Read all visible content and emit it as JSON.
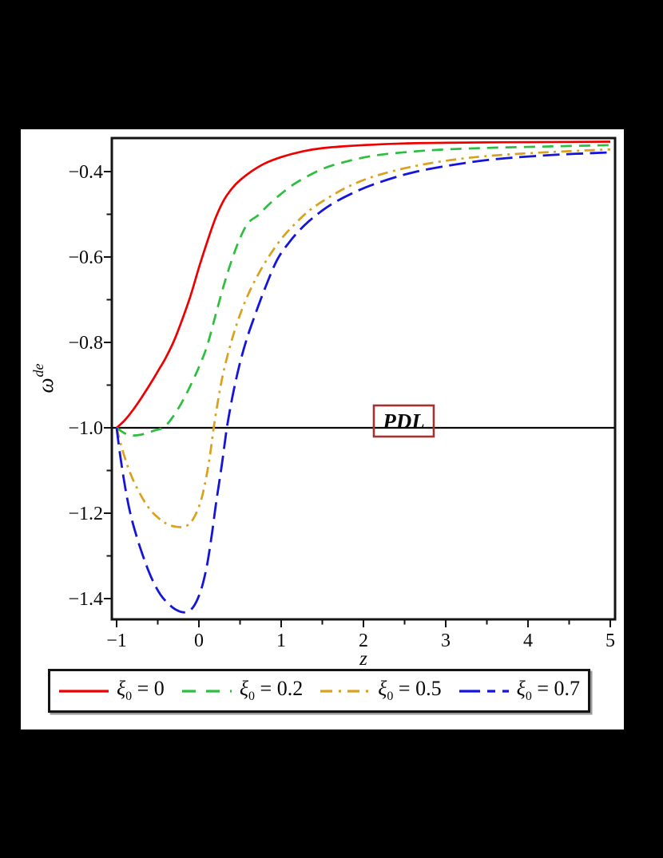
{
  "figure": {
    "page_background": "#000000",
    "canvas_background": "#ffffff",
    "frame_color": "#141414"
  },
  "chart_data": {
    "type": "line",
    "title": "",
    "xlabel": "z",
    "ylabel": {
      "symbol": "ω",
      "superscript": "de"
    },
    "xlim": [
      -1.06,
      5.06
    ],
    "ylim": [
      -1.45,
      -0.32
    ],
    "grid": false,
    "legend_position": "bottom",
    "x_major_ticks": [
      -1,
      0,
      1,
      2,
      3,
      4,
      5
    ],
    "x_tick_labels": [
      "−1",
      "0",
      "1",
      "2",
      "3",
      "4",
      "5"
    ],
    "x_minor_ticks": [
      -0.5,
      0.5,
      1.5,
      2.5,
      3.5,
      4.5
    ],
    "y_major_ticks": [
      -0.4,
      -0.6,
      -0.8,
      -1.0,
      -1.2,
      -1.4
    ],
    "y_tick_labels": [
      "−0.4",
      "−0.6",
      "−0.8",
      "−1.0",
      "−1.2",
      "−1.4"
    ],
    "y_minor_ticks": [
      -0.5,
      -0.7,
      -0.9,
      -1.1,
      -1.3
    ],
    "annotation": {
      "text": "PDL",
      "line_y": -1.0,
      "box_color": "#a33232",
      "text_color": "#0a0a0a"
    },
    "series": [
      {
        "name": "ξ0 = 0",
        "legend": {
          "symbol": "ξ",
          "sub": "0",
          "value": "0"
        },
        "color": "#ee0000",
        "dash": "solid",
        "legend_dash": "solid",
        "width": 2.7,
        "points": [
          [
            -1,
            -1
          ],
          [
            -0.9,
            -0.982
          ],
          [
            -0.8,
            -0.958
          ],
          [
            -0.7,
            -0.93
          ],
          [
            -0.6,
            -0.9
          ],
          [
            -0.5,
            -0.868
          ],
          [
            -0.4,
            -0.835
          ],
          [
            -0.3,
            -0.795
          ],
          [
            -0.2,
            -0.745
          ],
          [
            -0.1,
            -0.69
          ],
          [
            0,
            -0.625
          ],
          [
            0.1,
            -0.565
          ],
          [
            0.2,
            -0.51
          ],
          [
            0.3,
            -0.468
          ],
          [
            0.4,
            -0.44
          ],
          [
            0.5,
            -0.42
          ],
          [
            0.65,
            -0.398
          ],
          [
            0.8,
            -0.381
          ],
          [
            1,
            -0.366
          ],
          [
            1.25,
            -0.353
          ],
          [
            1.5,
            -0.345
          ],
          [
            1.75,
            -0.341
          ],
          [
            2,
            -0.338
          ],
          [
            2.5,
            -0.334
          ],
          [
            3,
            -0.3325
          ],
          [
            3.5,
            -0.3315
          ],
          [
            4,
            -0.331
          ],
          [
            4.5,
            -0.3305
          ],
          [
            5,
            -0.33
          ]
        ]
      },
      {
        "name": "ξ0 = 0.2",
        "legend": {
          "symbol": "ξ",
          "sub": "0",
          "value": "0.2"
        },
        "color": "#2cbe3e",
        "dash": "14 9",
        "legend_dash": "17 13",
        "width": 2.7,
        "points": [
          [
            -1,
            -1
          ],
          [
            -0.9,
            -1.013
          ],
          [
            -0.8,
            -1.018
          ],
          [
            -0.68,
            -1.015
          ],
          [
            -0.55,
            -1.007
          ],
          [
            -0.43,
            -0.999
          ],
          [
            -0.33,
            -0.978
          ],
          [
            -0.2,
            -0.938
          ],
          [
            -0.1,
            -0.9
          ],
          [
            0,
            -0.858
          ],
          [
            0.1,
            -0.808
          ],
          [
            0.2,
            -0.738
          ],
          [
            0.3,
            -0.668
          ],
          [
            0.4,
            -0.607
          ],
          [
            0.5,
            -0.556
          ],
          [
            0.6,
            -0.52
          ],
          [
            0.72,
            -0.502
          ],
          [
            0.85,
            -0.477
          ],
          [
            1,
            -0.452
          ],
          [
            1.2,
            -0.424
          ],
          [
            1.5,
            -0.394
          ],
          [
            1.8,
            -0.376
          ],
          [
            2.15,
            -0.362
          ],
          [
            2.6,
            -0.353
          ],
          [
            3,
            -0.348
          ],
          [
            3.6,
            -0.344
          ],
          [
            4.3,
            -0.341
          ],
          [
            5,
            -0.338
          ]
        ]
      },
      {
        "name": "ξ0 = 0.5",
        "legend": {
          "symbol": "ξ",
          "sub": "0",
          "value": "0.5"
        },
        "color": "#d9a11c",
        "dash": "13 6.5 3 6.5",
        "legend_dash": "15 8 3 8",
        "width": 2.7,
        "points": [
          [
            -1,
            -1
          ],
          [
            -0.95,
            -1.038
          ],
          [
            -0.88,
            -1.082
          ],
          [
            -0.8,
            -1.122
          ],
          [
            -0.7,
            -1.16
          ],
          [
            -0.6,
            -1.19
          ],
          [
            -0.5,
            -1.21
          ],
          [
            -0.4,
            -1.224
          ],
          [
            -0.3,
            -1.231
          ],
          [
            -0.2,
            -1.232
          ],
          [
            -0.1,
            -1.222
          ],
          [
            0,
            -1.185
          ],
          [
            0.07,
            -1.135
          ],
          [
            0.13,
            -1.07
          ],
          [
            0.18,
            -1
          ],
          [
            0.24,
            -0.928
          ],
          [
            0.3,
            -0.868
          ],
          [
            0.38,
            -0.808
          ],
          [
            0.46,
            -0.757
          ],
          [
            0.55,
            -0.71
          ],
          [
            0.66,
            -0.663
          ],
          [
            0.82,
            -0.608
          ],
          [
            1,
            -0.558
          ],
          [
            1.17,
            -0.522
          ],
          [
            1.35,
            -0.49
          ],
          [
            1.6,
            -0.458
          ],
          [
            1.85,
            -0.432
          ],
          [
            2.15,
            -0.41
          ],
          [
            2.6,
            -0.388
          ],
          [
            3.1,
            -0.372
          ],
          [
            3.6,
            -0.362
          ],
          [
            4.3,
            -0.354
          ],
          [
            5,
            -0.348
          ]
        ]
      },
      {
        "name": "ξ0 = 0.7",
        "legend": {
          "symbol": "ξ",
          "sub": "0",
          "value": "0.7"
        },
        "color": "#1414dd",
        "dash": "21 8.5",
        "legend_dash": "26 9 10 9",
        "width": 2.8,
        "points": [
          [
            -1,
            -1
          ],
          [
            -0.96,
            -1.06
          ],
          [
            -0.9,
            -1.135
          ],
          [
            -0.84,
            -1.195
          ],
          [
            -0.77,
            -1.246
          ],
          [
            -0.68,
            -1.3
          ],
          [
            -0.58,
            -1.35
          ],
          [
            -0.47,
            -1.39
          ],
          [
            -0.36,
            -1.414
          ],
          [
            -0.27,
            -1.427
          ],
          [
            -0.17,
            -1.432
          ],
          [
            -0.07,
            -1.42
          ],
          [
            0.02,
            -1.383
          ],
          [
            0.09,
            -1.33
          ],
          [
            0.15,
            -1.26
          ],
          [
            0.21,
            -1.175
          ],
          [
            0.28,
            -1.085
          ],
          [
            0.34,
            -1
          ],
          [
            0.41,
            -0.925
          ],
          [
            0.49,
            -0.855
          ],
          [
            0.58,
            -0.793
          ],
          [
            0.68,
            -0.737
          ],
          [
            0.8,
            -0.675
          ],
          [
            0.95,
            -0.607
          ],
          [
            1.1,
            -0.565
          ],
          [
            1.25,
            -0.532
          ],
          [
            1.4,
            -0.506
          ],
          [
            1.6,
            -0.478
          ],
          [
            1.85,
            -0.452
          ],
          [
            2.15,
            -0.428
          ],
          [
            2.6,
            -0.402
          ],
          [
            3.1,
            -0.384
          ],
          [
            3.6,
            -0.371
          ],
          [
            4.3,
            -0.361
          ],
          [
            5,
            -0.355
          ]
        ]
      }
    ]
  }
}
